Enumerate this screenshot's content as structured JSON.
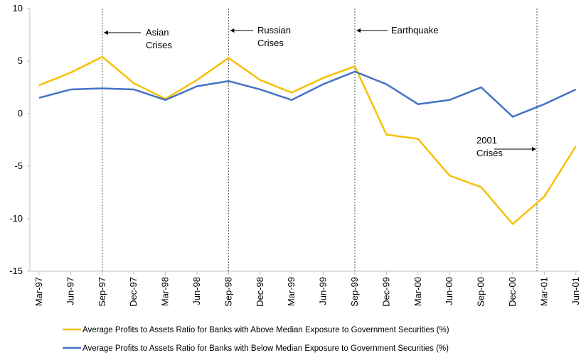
{
  "chart_data": {
    "type": "line",
    "categories": [
      "Mar-97",
      "Jun-97",
      "Sep-97",
      "Dec-97",
      "Mar-98",
      "Jun-98",
      "Sep-98",
      "Dec-98",
      "Mar-99",
      "Jun-99",
      "Sep-99",
      "Dec-99",
      "Mar-00",
      "Jun-00",
      "Sep-00",
      "Dec-00",
      "Mar-01",
      "Jun-01"
    ],
    "series": [
      {
        "name": "Average Profits to Assets Ratio for Banks with Above Median Exposure to Government Securities (%)",
        "color": "#f5c000",
        "values": [
          2.7,
          3.9,
          5.4,
          2.9,
          1.4,
          3.2,
          5.3,
          3.2,
          2.0,
          3.4,
          4.5,
          -2.0,
          -2.4,
          -5.9,
          -7.0,
          -10.5,
          -7.9,
          -3.1
        ]
      },
      {
        "name": "Average Profits to Assets Ratio for Banks with Below Median Exposure to Government Securities (%)",
        "color": "#4472c4",
        "values": [
          1.5,
          2.3,
          2.4,
          2.3,
          1.3,
          2.6,
          3.1,
          2.3,
          1.3,
          2.8,
          4.0,
          2.8,
          0.9,
          1.3,
          2.5,
          -0.3,
          0.9,
          2.3
        ]
      }
    ],
    "ylim": [
      -15,
      10
    ],
    "yticks": [
      -15,
      -10,
      -5,
      0,
      5,
      10
    ],
    "grid": false,
    "annotations": [
      {
        "lines": [
          "Asian",
          "Crises"
        ]
      },
      {
        "lines": [
          "Russian",
          "Crises"
        ]
      },
      {
        "lines": [
          "Earthquake"
        ]
      },
      {
        "lines": [
          "2001",
          "Crises"
        ]
      }
    ]
  }
}
